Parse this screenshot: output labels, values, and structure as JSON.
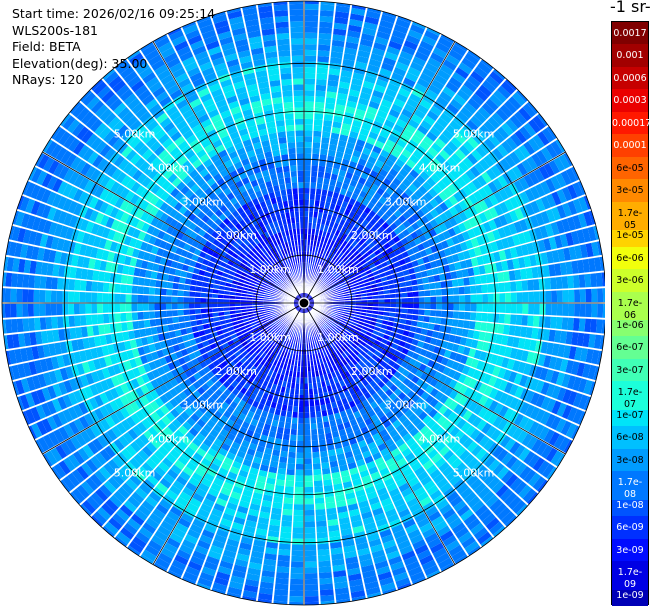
{
  "info": {
    "start_time": "Start time: 2026/02/16 09:25:14",
    "instrument": "WLS200s-181",
    "field": "Field: BETA",
    "elevation": "Elevation(deg): 35.00",
    "nrays": "NRays: 120"
  },
  "colorbar": {
    "title": "-1 sr-",
    "labels": [
      "0.0017",
      "0.001",
      "0.0006",
      "0.0003",
      "0.00017",
      "0.0001",
      "6e-05",
      "3e-05",
      "1.7e-05",
      "1e-05",
      "6e-06",
      "3e-06",
      "1.7e-06",
      "1e-06",
      "6e-07",
      "3e-07",
      "1.7e-07",
      "1e-07",
      "6e-08",
      "3e-08",
      "1.7e-08",
      "1e-08",
      "6e-09",
      "3e-09",
      "1.7e-09",
      "1e-09"
    ],
    "colors": [
      "#800000",
      "#a20000",
      "#c60000",
      "#ea0000",
      "#ff1800",
      "#ff4000",
      "#ff6400",
      "#ff8900",
      "#ffad00",
      "#ffd300",
      "#f2ff0c",
      "#cdff2a",
      "#aaff4d",
      "#87ff70",
      "#64ff93",
      "#40ffb6",
      "#1cffda",
      "#00e4f8",
      "#00c0ff",
      "#009cff",
      "#0078ff",
      "#0054ff",
      "#0030ff",
      "#000cff",
      "#0000e4",
      "#0000b6"
    ]
  },
  "chart_data": {
    "type": "heatmap",
    "subtype": "polar-ppi",
    "title": "",
    "n_rays": 120,
    "elevation_deg": 35.0,
    "field": "BETA",
    "range_rings_km": [
      1.0,
      2.0,
      3.0,
      4.0,
      5.0
    ],
    "ring_labels": {
      "1.0": "1.00km",
      "2.0": "2.00km",
      "3.0": "3.00km",
      "4.0": "4.00km",
      "5.0": "5.00km"
    },
    "max_range_km": 6.3,
    "range_bands_km": [
      {
        "from": 0.0,
        "to": 0.6,
        "level": 24
      },
      {
        "from": 0.6,
        "to": 1.6,
        "level": 23
      },
      {
        "from": 1.6,
        "to": 2.4,
        "level": 22
      },
      {
        "from": 2.4,
        "to": 3.1,
        "level": 20
      },
      {
        "from": 3.1,
        "to": 3.6,
        "level": 19
      },
      {
        "from": 3.6,
        "to": 4.3,
        "level": 17
      },
      {
        "from": 4.3,
        "to": 5.0,
        "level": 18
      },
      {
        "from": 5.0,
        "to": 5.6,
        "level": 19
      },
      {
        "from": 5.6,
        "to": 6.3,
        "level": 20
      }
    ],
    "grid": true,
    "colorbar_position": "right"
  }
}
